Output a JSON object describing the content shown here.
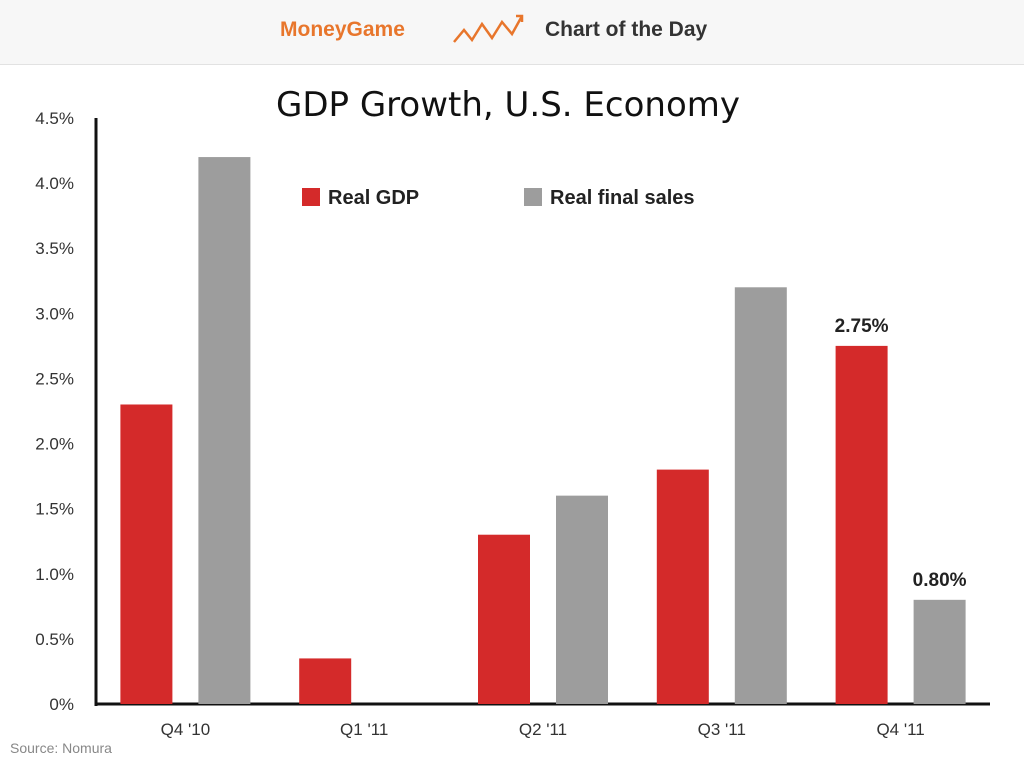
{
  "banner": {
    "brand": "MoneyGame",
    "section": "Chart of the Day"
  },
  "source": "Source: Nomura",
  "colors": {
    "real_gdp": "#d42a2a",
    "real_final_sales": "#9d9d9d",
    "brand_orange": "#e8762c"
  },
  "icons": [
    "trend-line-icon"
  ],
  "chart_data": {
    "type": "bar",
    "title": "GDP Growth, U.S. Economy",
    "xlabel": "",
    "ylabel": "",
    "categories": [
      "Q4 '10",
      "Q1 '11",
      "Q2 '11",
      "Q3 '11",
      "Q4 '11"
    ],
    "series": [
      {
        "name": "Real GDP",
        "values": [
          2.3,
          0.35,
          1.3,
          1.8,
          2.75
        ]
      },
      {
        "name": "Real final sales",
        "values": [
          4.2,
          0,
          1.6,
          3.2,
          0.8
        ]
      }
    ],
    "ylim": [
      0,
      4.5
    ],
    "yticks": [
      "0%",
      "0.5%",
      "1.0%",
      "1.5%",
      "2.0%",
      "2.5%",
      "3.0%",
      "3.5%",
      "4.0%",
      "4.5%"
    ],
    "data_labels": [
      {
        "series": 0,
        "category": 4,
        "text": "2.75%"
      },
      {
        "series": 1,
        "category": 4,
        "text": "0.80%"
      }
    ],
    "legend": "top-center",
    "grid": false
  }
}
